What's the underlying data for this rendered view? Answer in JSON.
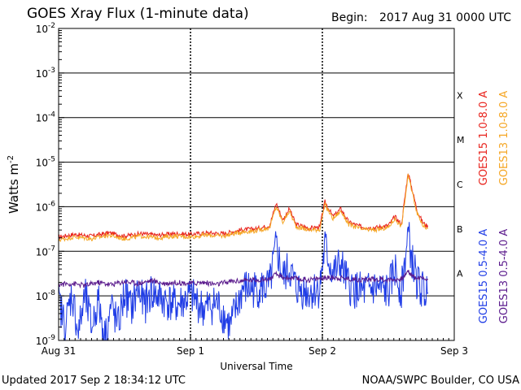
{
  "chart_data": {
    "type": "line",
    "title": "GOES Xray Flux (1-minute data)",
    "begin_label": "Begin:",
    "begin_value": "2017 Aug 31 0000 UTC",
    "xlabel": "Universal Time",
    "ylabel": "Watts m",
    "ylabel_sup": "-2",
    "y_scale": "log",
    "ylim": [
      1e-09,
      0.01
    ],
    "y_ticks": [
      {
        "base": "10",
        "exp": "-9",
        "value": 1e-09
      },
      {
        "base": "10",
        "exp": "-8",
        "value": 1e-08
      },
      {
        "base": "10",
        "exp": "-7",
        "value": 1e-07
      },
      {
        "base": "10",
        "exp": "-6",
        "value": 1e-06
      },
      {
        "base": "10",
        "exp": "-5",
        "value": 1e-05
      },
      {
        "base": "10",
        "exp": "-4",
        "value": 0.0001
      },
      {
        "base": "10",
        "exp": "-3",
        "value": 0.001
      },
      {
        "base": "10",
        "exp": "-2",
        "value": 0.01
      }
    ],
    "x_ticks": [
      {
        "label": "Aug 31",
        "day": 0
      },
      {
        "label": "Sep 1",
        "day": 1
      },
      {
        "label": "Sep 2",
        "day": 2
      },
      {
        "label": "Sep 3",
        "day": 3
      }
    ],
    "xlim_days": [
      0,
      3
    ],
    "flare_classes": [
      {
        "label": "A",
        "min": 1e-08
      },
      {
        "label": "B",
        "min": 1e-07
      },
      {
        "label": "C",
        "min": 1e-06
      },
      {
        "label": "M",
        "min": 1e-05
      },
      {
        "label": "X",
        "min": 0.0001
      }
    ],
    "grid": true,
    "legend_position": "right",
    "series": [
      {
        "name": "GOES15 1.0-8.0 A",
        "color": "#e8231c",
        "points": [
          [
            0,
            2.1e-07
          ],
          [
            0.12,
            2.4e-07
          ],
          [
            0.25,
            2.2e-07
          ],
          [
            0.38,
            2.6e-07
          ],
          [
            0.5,
            2.2e-07
          ],
          [
            0.62,
            2.5e-07
          ],
          [
            0.75,
            2.3e-07
          ],
          [
            0.88,
            2.5e-07
          ],
          [
            1.0,
            2.4e-07
          ],
          [
            1.12,
            2.6e-07
          ],
          [
            1.25,
            2.5e-07
          ],
          [
            1.38,
            3e-07
          ],
          [
            1.5,
            3.2e-07
          ],
          [
            1.6,
            3.8e-07
          ],
          [
            1.65,
            1.2e-06
          ],
          [
            1.7,
            5e-07
          ],
          [
            1.75,
            9e-07
          ],
          [
            1.8,
            4e-07
          ],
          [
            1.9,
            3.3e-07
          ],
          [
            1.98,
            3.5e-07
          ],
          [
            2.02,
            1.3e-06
          ],
          [
            2.08,
            6e-07
          ],
          [
            2.14,
            9e-07
          ],
          [
            2.2,
            4.5e-07
          ],
          [
            2.3,
            3.5e-07
          ],
          [
            2.4,
            3.4e-07
          ],
          [
            2.5,
            3.8e-07
          ],
          [
            2.55,
            6e-07
          ],
          [
            2.6,
            4e-07
          ],
          [
            2.65,
            6e-06
          ],
          [
            2.68,
            2.5e-06
          ],
          [
            2.72,
            8e-07
          ],
          [
            2.76,
            4.5e-07
          ],
          [
            2.8,
            3.5e-07
          ]
        ]
      },
      {
        "name": "GOES13 1.0-8.0 A",
        "color": "#f5a623",
        "points": [
          [
            0,
            1.8e-07
          ],
          [
            0.12,
            2.1e-07
          ],
          [
            0.25,
            1.9e-07
          ],
          [
            0.38,
            2.3e-07
          ],
          [
            0.5,
            1.9e-07
          ],
          [
            0.62,
            2.2e-07
          ],
          [
            0.75,
            2e-07
          ],
          [
            0.88,
            2.2e-07
          ],
          [
            1.0,
            2.1e-07
          ],
          [
            1.12,
            2.3e-07
          ],
          [
            1.25,
            2.2e-07
          ],
          [
            1.38,
            2.7e-07
          ],
          [
            1.5,
            2.9e-07
          ],
          [
            1.6,
            3.4e-07
          ],
          [
            1.65,
            1e-06
          ],
          [
            1.7,
            4.5e-07
          ],
          [
            1.75,
            8e-07
          ],
          [
            1.8,
            3.6e-07
          ],
          [
            1.9,
            3e-07
          ],
          [
            1.98,
            3.1e-07
          ],
          [
            2.02,
            1.1e-06
          ],
          [
            2.08,
            5.4e-07
          ],
          [
            2.14,
            8e-07
          ],
          [
            2.2,
            4e-07
          ],
          [
            2.3,
            3.1e-07
          ],
          [
            2.4,
            3e-07
          ],
          [
            2.5,
            3.4e-07
          ],
          [
            2.55,
            5.4e-07
          ],
          [
            2.6,
            3.6e-07
          ],
          [
            2.65,
            5e-06
          ],
          [
            2.68,
            2.2e-06
          ],
          [
            2.72,
            7e-07
          ],
          [
            2.76,
            4e-07
          ],
          [
            2.8,
            3.2e-07
          ]
        ]
      },
      {
        "name": "GOES15 0.5-4.0 A",
        "color": "#1f3ce6",
        "points": [
          [
            0,
            8e-09
          ],
          [
            0.05,
            2e-09
          ],
          [
            0.1,
            1.2e-08
          ],
          [
            0.15,
            1.5e-09
          ],
          [
            0.2,
            1e-08
          ],
          [
            0.25,
            2e-09
          ],
          [
            0.3,
            8e-09
          ],
          [
            0.35,
            1.2e-09
          ],
          [
            0.4,
            6e-09
          ],
          [
            0.45,
            2e-09
          ],
          [
            0.5,
            1.2e-08
          ],
          [
            0.55,
            5e-09
          ],
          [
            0.6,
            1.4e-08
          ],
          [
            0.65,
            6e-09
          ],
          [
            0.7,
            1.2e-08
          ],
          [
            0.8,
            8e-09
          ],
          [
            0.9,
            6e-09
          ],
          [
            1.0,
            1e-08
          ],
          [
            1.1,
            5e-09
          ],
          [
            1.2,
            7e-09
          ],
          [
            1.3,
            2e-09
          ],
          [
            1.4,
            1.5e-08
          ],
          [
            1.5,
            1.4e-08
          ],
          [
            1.6,
            1.6e-08
          ],
          [
            1.65,
            1.3e-07
          ],
          [
            1.7,
            2.5e-08
          ],
          [
            1.75,
            4e-08
          ],
          [
            1.8,
            1.5e-08
          ],
          [
            1.9,
            1.2e-08
          ],
          [
            1.98,
            1.5e-08
          ],
          [
            2.02,
            1.3e-07
          ],
          [
            2.08,
            3e-08
          ],
          [
            2.14,
            5e-08
          ],
          [
            2.2,
            1.6e-08
          ],
          [
            2.3,
            1.2e-08
          ],
          [
            2.4,
            1.5e-08
          ],
          [
            2.5,
            1.2e-08
          ],
          [
            2.55,
            4e-08
          ],
          [
            2.6,
            1.3e-08
          ],
          [
            2.65,
            2.5e-07
          ],
          [
            2.68,
            6e-08
          ],
          [
            2.72,
            2e-08
          ],
          [
            2.76,
            1.3e-08
          ],
          [
            2.8,
            1.2e-08
          ]
        ]
      },
      {
        "name": "GOES13 0.5-4.0 A",
        "color": "#5a1a8c",
        "points": [
          [
            0,
            1.8e-08
          ],
          [
            0.1,
            1.9e-08
          ],
          [
            0.2,
            1.7e-08
          ],
          [
            0.3,
            2e-08
          ],
          [
            0.4,
            1.8e-08
          ],
          [
            0.5,
            2.1e-08
          ],
          [
            0.6,
            1.9e-08
          ],
          [
            0.7,
            2.2e-08
          ],
          [
            0.8,
            1.9e-08
          ],
          [
            0.9,
            2e-08
          ],
          [
            1.0,
            1.9e-08
          ],
          [
            1.1,
            2e-08
          ],
          [
            1.2,
            1.8e-08
          ],
          [
            1.3,
            2.1e-08
          ],
          [
            1.4,
            2.2e-08
          ],
          [
            1.5,
            2.3e-08
          ],
          [
            1.6,
            2.4e-08
          ],
          [
            1.65,
            3e-08
          ],
          [
            1.7,
            2.6e-08
          ],
          [
            1.8,
            2.4e-08
          ],
          [
            1.9,
            2.3e-08
          ],
          [
            2.0,
            2.5e-08
          ],
          [
            2.1,
            2.6e-08
          ],
          [
            2.2,
            2.4e-08
          ],
          [
            2.3,
            2.3e-08
          ],
          [
            2.4,
            2.4e-08
          ],
          [
            2.5,
            2.3e-08
          ],
          [
            2.6,
            2.4e-08
          ],
          [
            2.65,
            3.5e-08
          ],
          [
            2.7,
            2.6e-08
          ],
          [
            2.8,
            2.4e-08
          ]
        ]
      }
    ]
  },
  "footer": {
    "updated": "Updated 2017 Sep  2 18:34:12 UTC",
    "source": "NOAA/SWPC Boulder, CO USA"
  }
}
